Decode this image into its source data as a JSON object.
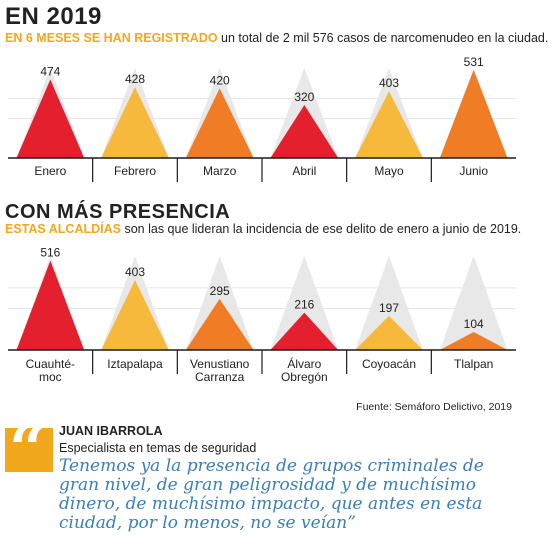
{
  "header1": {
    "title": "EN 2019",
    "highlight": "En 6 meses se han registrado",
    "text": " un total de 2 mil 576 casos de narcomenudeo en la ciudad."
  },
  "header2": {
    "title": "CON MÁS PRESENCIA",
    "highlight": "Estas alcaldías",
    "text": " son las que lideran la incidencia de ese delito de enero a junio de 2019."
  },
  "chart_data": [
    {
      "type": "bar",
      "categories": [
        "Enero",
        "Febrero",
        "Marzo",
        "Abril",
        "Mayo",
        "Junio"
      ],
      "values": [
        474,
        428,
        420,
        320,
        403,
        531
      ],
      "colors": [
        "#e4202f",
        "#f6b93b",
        "#f07c26",
        "#e4202f",
        "#f6b93b",
        "#f07c26"
      ],
      "ylim": [
        0,
        531
      ]
    },
    {
      "type": "bar",
      "categories": [
        "Cuauhté-\nmoc",
        "Iztapalapa",
        "Venustiano\nCarranza",
        "Álvaro\nObregón",
        "Coyoacán",
        "Tlalpan"
      ],
      "values": [
        516,
        403,
        295,
        216,
        197,
        104
      ],
      "colors": [
        "#e4202f",
        "#f6b93b",
        "#f07c26",
        "#e4202f",
        "#f6b93b",
        "#f07c26"
      ],
      "ylim": [
        0,
        531
      ]
    }
  ],
  "source": "Fuente: Semáforo Delictivo, 2019",
  "quote": {
    "mark": "“",
    "name": "JUAN IBARROLA",
    "role": "Especialista en temas de seguridad",
    "text": "Tenemos ya la presencia de grupos criminales de gran nivel, de gran peligrosidad y de muchísimo dinero, de muchísimo impacto, que antes en esta ciudad, por lo menos, no se veían”"
  }
}
